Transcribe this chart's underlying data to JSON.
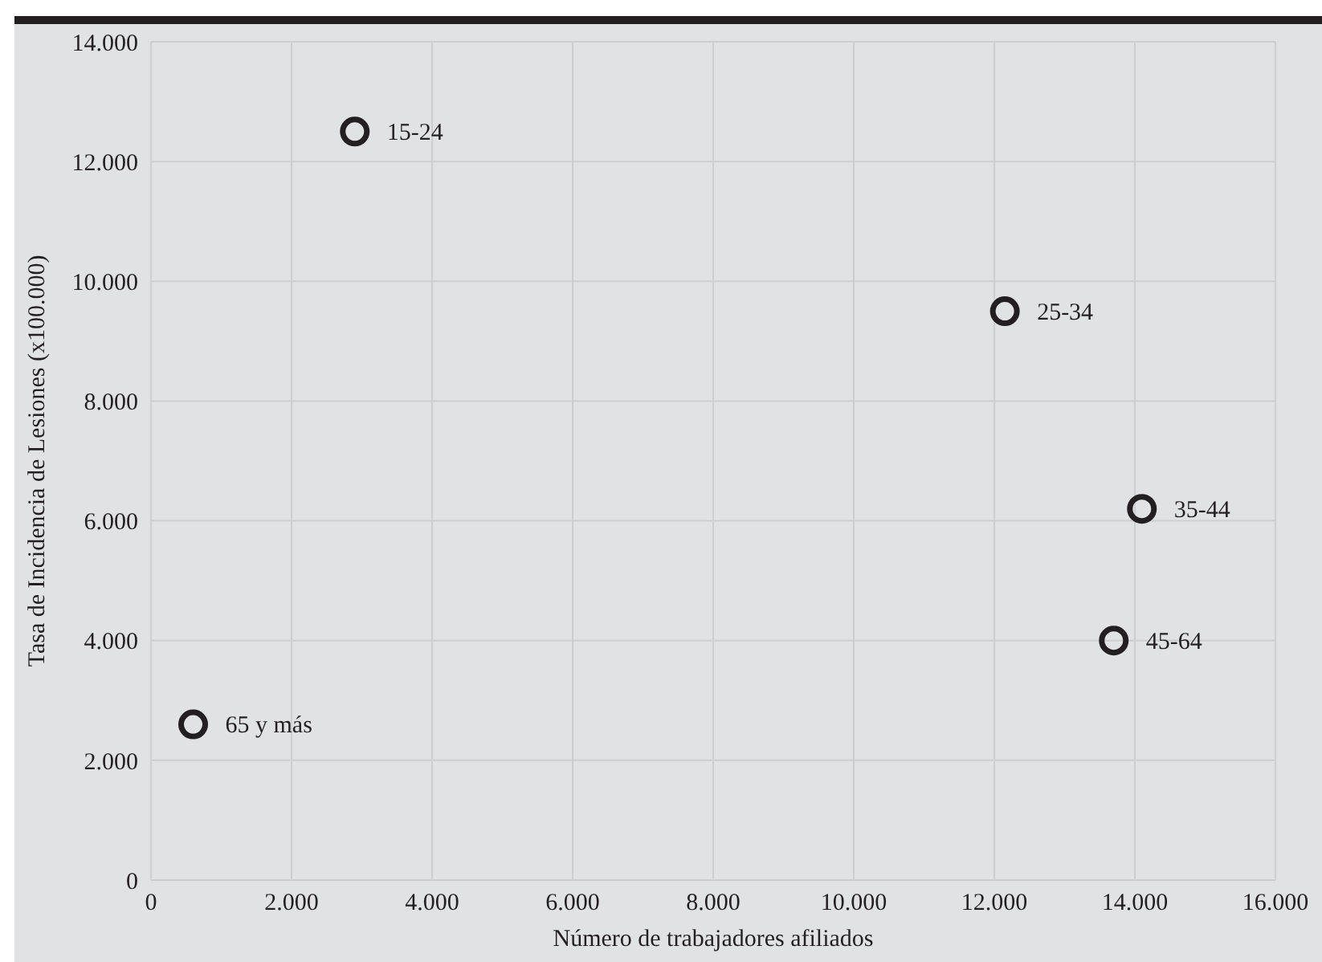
{
  "chart_data": {
    "type": "scatter",
    "xlabel": "Número de trabajadores afiliados",
    "ylabel": "Tasa de Incidencia de Lesiones  (x100.000)",
    "x": [
      2900,
      12150,
      14100,
      13700,
      600
    ],
    "values": [
      12500,
      9500,
      6200,
      4000,
      2600
    ],
    "color": "#231f20",
    "marker": "circle",
    "xlim": [
      0,
      16000
    ],
    "xticks": [
      0,
      {
        "value": 2000,
        "label": "2.000"
      },
      {
        "value": 4000,
        "label": "4.000"
      },
      {
        "value": 6000,
        "label": "6.000"
      },
      {
        "value": 8000,
        "label": "8.000"
      },
      {
        "value": 10000,
        "label": "10.000"
      },
      {
        "value": 12000,
        "label": "12.000"
      },
      {
        "value": 14000,
        "label": "14.000"
      },
      {
        "value": 16000,
        "label": "16.000"
      }
    ],
    "ylim": [
      0,
      14000
    ],
    "yticks": [
      0,
      {
        "value": 2000,
        "label": "2.000"
      },
      {
        "value": 4000,
        "label": "4.000"
      },
      {
        "value": 6000,
        "label": "6.000"
      },
      {
        "value": 8000,
        "label": "8.000"
      },
      {
        "value": 10000,
        "label": "10.000"
      },
      {
        "value": 12000,
        "label": "12.000"
      },
      {
        "value": 14000,
        "label": "14.000"
      }
    ],
    "grid": true,
    "annotations": [
      {
        "text": "15-24",
        "x": 2900,
        "y": 12500
      },
      {
        "text": "25-34",
        "x": 12150,
        "y": 9500
      },
      {
        "text": "35-44",
        "x": 14100,
        "y": 6200
      },
      {
        "text": "45-64",
        "x": 13700,
        "y": 4000
      },
      {
        "text": "65 y más",
        "x": 600,
        "y": 2600
      }
    ]
  }
}
